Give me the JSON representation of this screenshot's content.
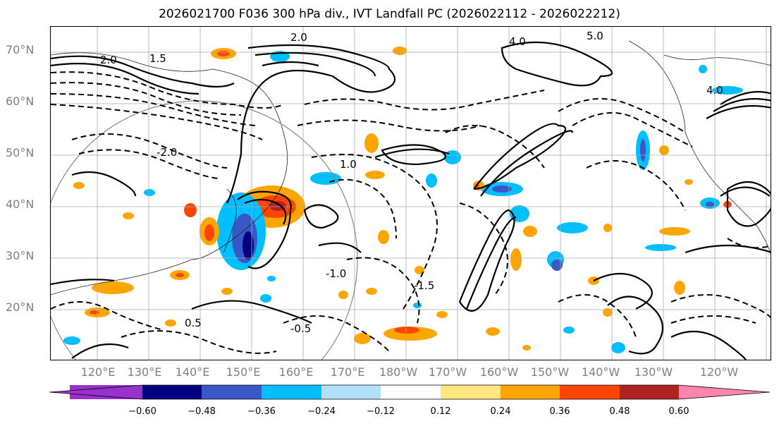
{
  "title": "2026021700 F036 300 hPa div., IVT Landfall PC (2026022112 - 2026022212)",
  "lat_labels": [
    "70°N",
    "60°N",
    "50°N",
    "40°N",
    "30°N",
    "20°N"
  ],
  "lon_labels": [
    "120°E",
    "130°E",
    "140°E",
    "150°E",
    "160°E",
    "170°E",
    "180°W",
    "170°W",
    "160°W",
    "150°W",
    "140°W",
    "130°W",
    "120°W"
  ],
  "colorbar": {
    "colors": [
      "#9932cc",
      "#000080",
      "#3a57c8",
      "#00bfff",
      "#b0e0fa",
      "#ffffff",
      "#ffe680",
      "#ffa500",
      "#ff4500",
      "#b22222",
      "#ff85b0"
    ],
    "ticks": [
      "−0.60",
      "−0.48",
      "−0.36",
      "−0.24",
      "−0.12",
      "0.12",
      "0.24",
      "0.36",
      "0.48",
      "0.60"
    ]
  },
  "contour_labels": [
    "4.0",
    "5.0",
    "2.0",
    "1.0",
    "1.5",
    "0.5",
    "-0.5",
    "-1.0",
    "-1.5",
    "-2.0",
    "2.0",
    "4.0"
  ]
}
